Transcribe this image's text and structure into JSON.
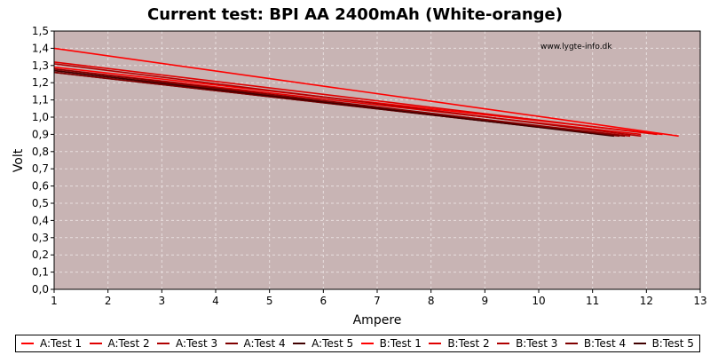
{
  "chart_data": {
    "type": "line",
    "title": "Current test: BPI AA 2400mAh (White-orange)",
    "xlabel": "Ampere",
    "ylabel": "Volt",
    "watermark": "www.lygte-info.dk",
    "xlim": [
      1,
      13
    ],
    "ylim": [
      0,
      1.5
    ],
    "x_ticks": [
      "1",
      "2",
      "3",
      "4",
      "5",
      "6",
      "7",
      "8",
      "9",
      "10",
      "11",
      "12",
      "13"
    ],
    "y_ticks": [
      "0,0",
      "0,1",
      "0,2",
      "0,3",
      "0,4",
      "0,5",
      "0,6",
      "0,7",
      "0,8",
      "0,9",
      "1,0",
      "1,1",
      "1,2",
      "1,3",
      "1,4",
      "1,5"
    ],
    "grid": true,
    "legend_position": "bottom",
    "colors": {
      "plot_background": "#c8b4b4",
      "grid": "#e8dede",
      "page_background": "#ffffff"
    },
    "series": [
      {
        "name": "A:Test 1",
        "color": "#ff0000",
        "x": [
          1,
          12.6
        ],
        "y": [
          1.4,
          0.89
        ]
      },
      {
        "name": "A:Test 2",
        "color": "#e00000",
        "x": [
          1,
          12.2
        ],
        "y": [
          1.32,
          0.9
        ]
      },
      {
        "name": "A:Test 3",
        "color": "#b00000",
        "x": [
          1,
          11.9
        ],
        "y": [
          1.31,
          0.89
        ]
      },
      {
        "name": "A:Test 4",
        "color": "#800000",
        "x": [
          1,
          11.6
        ],
        "y": [
          1.28,
          0.89
        ]
      },
      {
        "name": "A:Test 5",
        "color": "#400000",
        "x": [
          1,
          11.4
        ],
        "y": [
          1.27,
          0.89
        ]
      },
      {
        "name": "B:Test 1",
        "color": "#ff0000",
        "x": [
          1,
          12.3
        ],
        "y": [
          1.29,
          0.9
        ]
      },
      {
        "name": "B:Test 2",
        "color": "#e00000",
        "x": [
          1,
          11.9
        ],
        "y": [
          1.28,
          0.9
        ]
      },
      {
        "name": "B:Test 3",
        "color": "#b00000",
        "x": [
          1,
          11.7
        ],
        "y": [
          1.27,
          0.89
        ]
      },
      {
        "name": "B:Test 4",
        "color": "#800000",
        "x": [
          1,
          11.5
        ],
        "y": [
          1.26,
          0.89
        ]
      },
      {
        "name": "B:Test 5",
        "color": "#400000",
        "x": [
          1,
          11.2
        ],
        "y": [
          1.26,
          0.9
        ]
      }
    ]
  }
}
